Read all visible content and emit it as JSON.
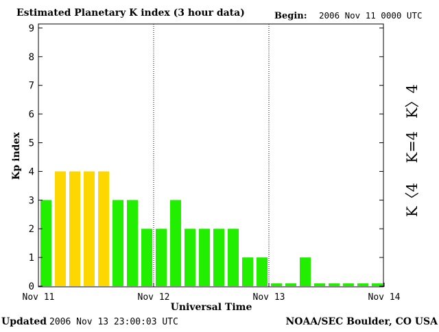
{
  "header": {
    "title": "Estimated Planetary K index (3 hour data)",
    "begin_label": "Begin:",
    "begin_value": "2006 Nov 11 0000 UTC"
  },
  "footer": {
    "updated_label": "Updated",
    "updated_value": "2006 Nov 13 23:00:03 UTC",
    "source": "NOAA/SEC Boulder, CO USA"
  },
  "legend": [
    {
      "label": "K>4",
      "color": "#ff2a00"
    },
    {
      "label": "K=4",
      "color": "#ffd700"
    },
    {
      "label": "K<4",
      "color": "#22ee00"
    }
  ],
  "chart_data": {
    "type": "bar",
    "title": "Estimated Planetary K index (3 hour data)",
    "xlabel": "Universal Time",
    "ylabel": "Kp index",
    "ylim": [
      0,
      9
    ],
    "yticks": [
      "0",
      "1",
      "2",
      "3",
      "4",
      "5",
      "6",
      "7",
      "8",
      "9"
    ],
    "xticks": [
      "Nov 11",
      "Nov 12",
      "Nov 13",
      "Nov 14"
    ],
    "bars_per_day": 8,
    "days": 3,
    "values": [
      3,
      4,
      4,
      4,
      4,
      3,
      3,
      2,
      2,
      3,
      2,
      2,
      2,
      2,
      1,
      1,
      0,
      0,
      1,
      0,
      0,
      0,
      0,
      0
    ],
    "colors": {
      "below4": "#22ee00",
      "equal4": "#ffd700",
      "above4": "#ff2a00"
    },
    "day_separators": "dotted",
    "grid": false
  }
}
